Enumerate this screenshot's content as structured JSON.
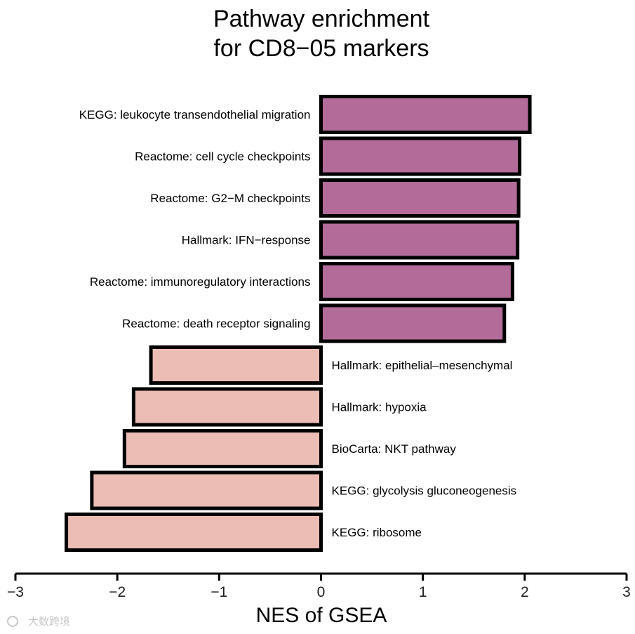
{
  "chart_data": {
    "type": "bar",
    "orientation": "horizontal",
    "title_lines": [
      "Pathway enrichment",
      "for CD8−05 markers"
    ],
    "xlabel": "NES of GSEA",
    "ylabel": "",
    "xlim": [
      -3,
      3
    ],
    "xticks": [
      -3,
      -2,
      -1,
      0,
      1,
      2,
      3
    ],
    "xtick_labels": [
      "−3",
      "−2",
      "−1",
      "0",
      "1",
      "2",
      "3"
    ],
    "grid": false,
    "legend": "none",
    "positive_color": "#b36b9a",
    "negative_color": "#ebbdb5",
    "categories": [
      "KEGG: leukocyte transendothelial migration",
      "Reactome: cell cycle checkpoints",
      "Reactome: G2−M checkpoints",
      "Hallmark: IFN−response",
      "Reactome: immunoregulatory interactions",
      "Reactome: death receptor signaling",
      "Hallmark: epithelial–mesenchymal",
      "Hallmark: hypoxia",
      "BioCarta: NKT pathway",
      "KEGG: glycolysis gluconeogenesis",
      "KEGG: ribosome"
    ],
    "values": [
      2.05,
      1.95,
      1.94,
      1.93,
      1.88,
      1.8,
      -1.67,
      -1.84,
      -1.93,
      -2.25,
      -2.5
    ]
  },
  "watermark": "大数跨境"
}
